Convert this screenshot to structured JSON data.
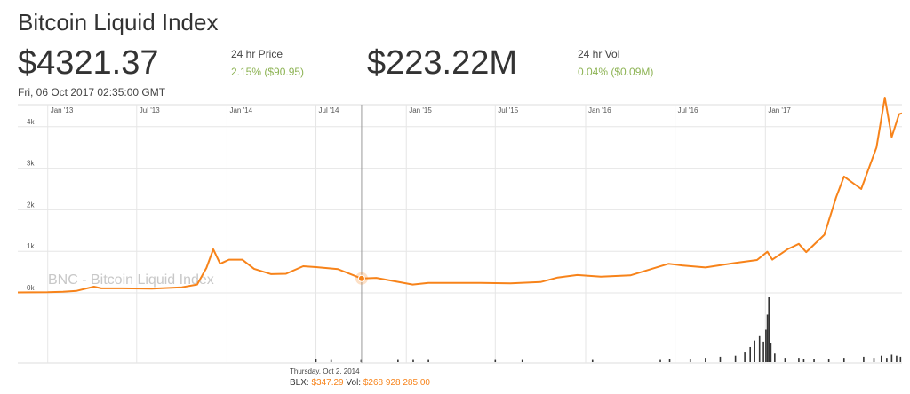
{
  "header": {
    "title": "Bitcoin Liquid Index",
    "price": "$4321.37",
    "price_label": "24 hr Price",
    "price_change": "2.15% ($90.95)",
    "volume": "$223.22M",
    "volume_label": "24 hr Vol",
    "volume_change": "0.04% ($0.09M)",
    "timestamp": "Fri, 06 Oct 2017 02:35:00 GMT"
  },
  "tooltip": {
    "date": "Thursday, Oct 2, 2014",
    "blx_label": "BLX:",
    "blx_value": "$347.29",
    "vol_label": "Vol:",
    "vol_value": "$268 928 285.00"
  },
  "colors": {
    "line": "#f7831a",
    "volume_bars": "#333333",
    "grid": "#e6e6e6",
    "crosshair": "#999999",
    "change_text": "#8db354"
  },
  "chart_data": {
    "type": "line",
    "watermark": "BNC - Bitcoin Liquid Index",
    "x_ticks": [
      "Jan '13",
      "Jul '13",
      "Jan '14",
      "Jul '14",
      "Jan '15",
      "Jul '15",
      "Jan '16",
      "Jul '16",
      "Jan '17"
    ],
    "y_ticks": [
      "0k",
      "1k",
      "2k",
      "3k",
      "4k"
    ],
    "ylim": [
      0,
      4700
    ],
    "xlim": [
      "2012-11-01",
      "2017-10-06"
    ],
    "grid": true,
    "highlight": {
      "x": "2014-10-02",
      "y": 347.29
    },
    "series": [
      {
        "x": [
          "2012-11-01",
          "2013-01-01",
          "2013-02-01",
          "2013-03-01",
          "2013-04-05",
          "2013-04-20",
          "2013-06-01",
          "2013-08-01",
          "2013-10-01",
          "2013-11-01",
          "2013-11-20",
          "2013-12-04",
          "2013-12-18",
          "2014-01-05",
          "2014-02-01",
          "2014-02-25",
          "2014-04-01",
          "2014-05-01",
          "2014-06-05",
          "2014-07-01",
          "2014-08-15",
          "2014-10-02",
          "2014-11-01",
          "2015-01-14",
          "2015-02-15",
          "2015-04-01",
          "2015-06-01",
          "2015-08-01",
          "2015-10-01",
          "2015-11-05",
          "2015-12-15",
          "2016-02-01",
          "2016-04-01",
          "2016-06-18",
          "2016-07-15",
          "2016-09-01",
          "2016-11-01",
          "2016-12-15",
          "2017-01-05",
          "2017-01-15",
          "2017-02-15",
          "2017-03-10",
          "2017-03-25",
          "2017-05-01",
          "2017-05-25",
          "2017-06-10",
          "2017-07-15",
          "2017-08-15",
          "2017-09-01",
          "2017-09-15",
          "2017-09-30",
          "2017-10-06"
        ],
        "y": [
          10,
          15,
          25,
          50,
          150,
          110,
          110,
          100,
          135,
          200,
          600,
          1050,
          700,
          800,
          800,
          580,
          450,
          460,
          640,
          620,
          570,
          347,
          360,
          200,
          240,
          240,
          240,
          230,
          260,
          370,
          430,
          390,
          420,
          700,
          660,
          610,
          720,
          790,
          990,
          800,
          1050,
          1180,
          980,
          1400,
          2300,
          2800,
          2500,
          3500,
          4700,
          3750,
          4300,
          4321
        ]
      }
    ],
    "volume": {
      "x": [
        "2014-07-01",
        "2014-08-01",
        "2014-10-01",
        "2014-12-15",
        "2015-01-15",
        "2015-02-15",
        "2015-07-01",
        "2015-08-25",
        "2016-01-15",
        "2016-06-01",
        "2016-06-20",
        "2016-08-01",
        "2016-09-01",
        "2016-10-01",
        "2016-11-01",
        "2016-11-20",
        "2016-12-01",
        "2016-12-10",
        "2016-12-20",
        "2016-12-28",
        "2017-01-02",
        "2017-01-05",
        "2017-01-08",
        "2017-01-12",
        "2017-01-20",
        "2017-02-10",
        "2017-03-10",
        "2017-03-20",
        "2017-04-10",
        "2017-05-10",
        "2017-06-10",
        "2017-07-20",
        "2017-08-10",
        "2017-08-25",
        "2017-09-05",
        "2017-09-15",
        "2017-09-25",
        "2017-10-03"
      ],
      "values": [
        3,
        2,
        2,
        2,
        2,
        2,
        2,
        2,
        2,
        2,
        3,
        3,
        4,
        5,
        6,
        9,
        14,
        20,
        24,
        19,
        30,
        44,
        60,
        18,
        8,
        4,
        4,
        3,
        3,
        3,
        4,
        5,
        4,
        6,
        4,
        7,
        6,
        5
      ]
    }
  }
}
